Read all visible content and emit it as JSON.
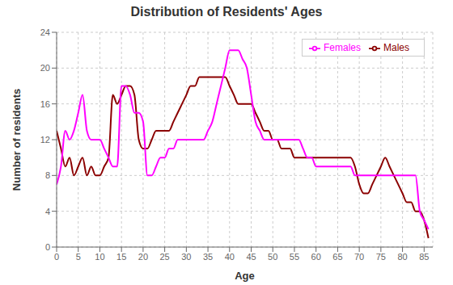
{
  "chart_data": {
    "type": "line",
    "title": "Distribution of Residents' Ages",
    "xlabel": "Age",
    "ylabel": "Number of residents",
    "x": [
      0,
      1,
      2,
      3,
      4,
      5,
      6,
      7,
      8,
      9,
      10,
      11,
      12,
      13,
      14,
      15,
      16,
      17,
      18,
      19,
      20,
      21,
      22,
      23,
      24,
      25,
      26,
      27,
      28,
      29,
      30,
      31,
      32,
      33,
      34,
      35,
      36,
      37,
      38,
      39,
      40,
      41,
      42,
      43,
      44,
      45,
      46,
      47,
      48,
      49,
      50,
      51,
      52,
      53,
      54,
      55,
      56,
      57,
      58,
      59,
      60,
      61,
      62,
      63,
      64,
      65,
      66,
      67,
      68,
      69,
      70,
      71,
      72,
      73,
      74,
      75,
      76,
      77,
      78,
      79,
      80,
      81,
      82,
      83,
      84,
      85,
      86
    ],
    "series": [
      {
        "name": "Males",
        "color": "#8B0000",
        "values": [
          13,
          11,
          9,
          10,
          8,
          9,
          10,
          8,
          9,
          8,
          8,
          9,
          10,
          17,
          16,
          17,
          18,
          18,
          17,
          12,
          11,
          11,
          12,
          13,
          13,
          13,
          13,
          14,
          15,
          16,
          17,
          18,
          18,
          19,
          19,
          19,
          19,
          19,
          19,
          19,
          18,
          17,
          16,
          16,
          16,
          16,
          15,
          14,
          13,
          13,
          12,
          12,
          11,
          11,
          11,
          10,
          10,
          10,
          10,
          10,
          10,
          10,
          10,
          10,
          10,
          10,
          10,
          10,
          10,
          9,
          7,
          6,
          6,
          7,
          8,
          9,
          10,
          9,
          8,
          7,
          6,
          5,
          5,
          4,
          4,
          3,
          1
        ]
      },
      {
        "name": "Females",
        "color": "#FF00FF",
        "values": [
          7,
          9,
          13,
          12,
          13,
          15,
          17,
          13,
          12,
          12,
          12,
          11,
          10,
          9,
          9,
          18,
          18,
          17,
          15,
          15,
          14,
          8,
          8,
          9,
          10,
          10,
          11,
          11,
          12,
          12,
          12,
          12,
          12,
          12,
          12,
          13,
          14,
          16,
          18,
          20,
          22,
          22,
          22,
          21,
          20,
          17,
          14,
          13,
          12,
          12,
          12,
          12,
          12,
          12,
          12,
          12,
          12,
          11,
          10,
          10,
          9,
          9,
          9,
          9,
          9,
          9,
          9,
          9,
          9,
          8,
          8,
          8,
          8,
          8,
          8,
          8,
          8,
          8,
          8,
          8,
          8,
          8,
          8,
          8,
          4,
          3,
          2
        ]
      }
    ],
    "xlim": [
      0,
      87
    ],
    "xticks": [
      0,
      5,
      10,
      15,
      20,
      25,
      30,
      35,
      40,
      45,
      50,
      55,
      60,
      65,
      70,
      75,
      80,
      85
    ],
    "ylim": [
      0,
      24
    ],
    "yticks": [
      0,
      4,
      8,
      12,
      16,
      20,
      24
    ],
    "grid": true,
    "legend": "upper right"
  }
}
